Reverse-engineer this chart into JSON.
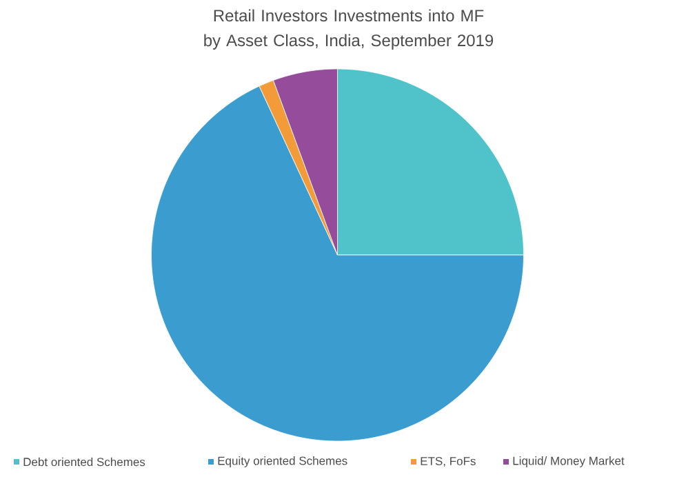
{
  "chart_data": {
    "type": "pie",
    "title": "Retail Investors Investments into MF by Asset Class, India, September 2019",
    "categories": [
      "Debt oriented Schemes",
      "Equity oriented Schemes",
      "ETS, FoFs",
      "Liquid/ Money Market"
    ],
    "values": [
      25,
      68.1,
      1.3,
      5.6
    ],
    "colors": [
      "#4fc3c9",
      "#3b9dcf",
      "#f29b38",
      "#944c9b"
    ],
    "legend": "bottom"
  }
}
